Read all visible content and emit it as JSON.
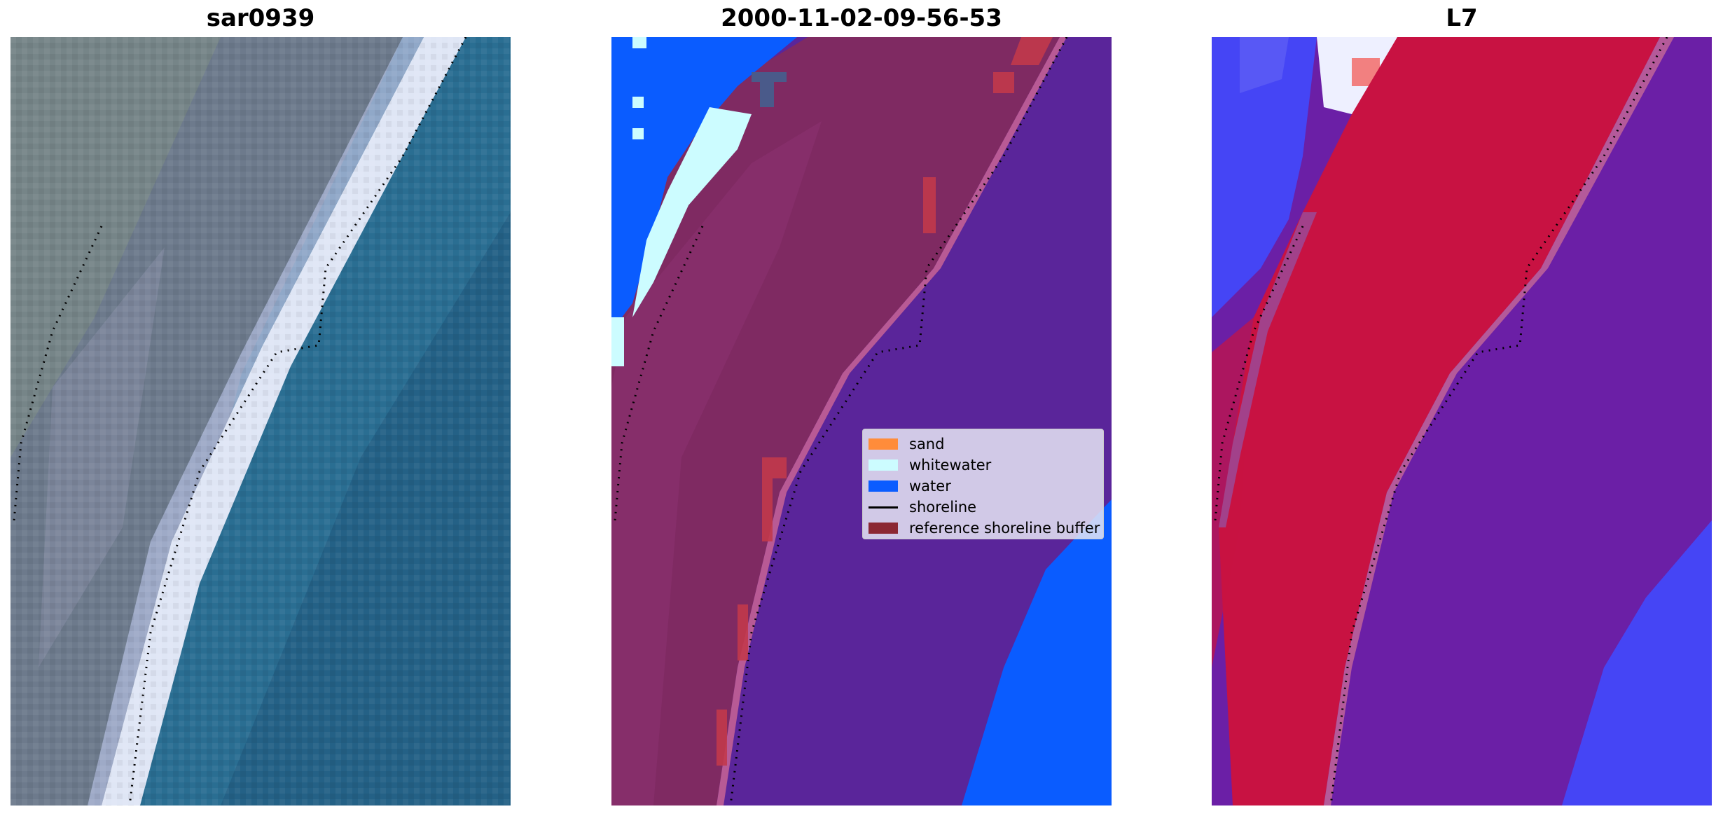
{
  "panels": [
    {
      "title": "sar0939"
    },
    {
      "title": "2000-11-02-09-56-53"
    },
    {
      "title": "L7"
    }
  ],
  "legend": {
    "items": [
      {
        "label": "sand",
        "color": "#ff8c3a"
      },
      {
        "label": "whitewater",
        "color": "#ccfcff"
      },
      {
        "label": "water",
        "color": "#0a5cff"
      },
      {
        "label": "shoreline",
        "color": "#000000"
      },
      {
        "label": "reference shoreline buffer",
        "color": "#8b2733"
      }
    ]
  },
  "colors": {
    "rgb_land": "#6d7a8c",
    "rgb_beach": "#dfe6f5",
    "rgb_water": "#2a6e92",
    "class_land": "#7f2a62",
    "class_water_interior": "#5a259a",
    "class_water": "#0a5cff",
    "class_whitewater": "#ccfcff",
    "index_land": "#c81242",
    "index_water": "#6b1fa6",
    "index_negative": "#4545f5"
  }
}
